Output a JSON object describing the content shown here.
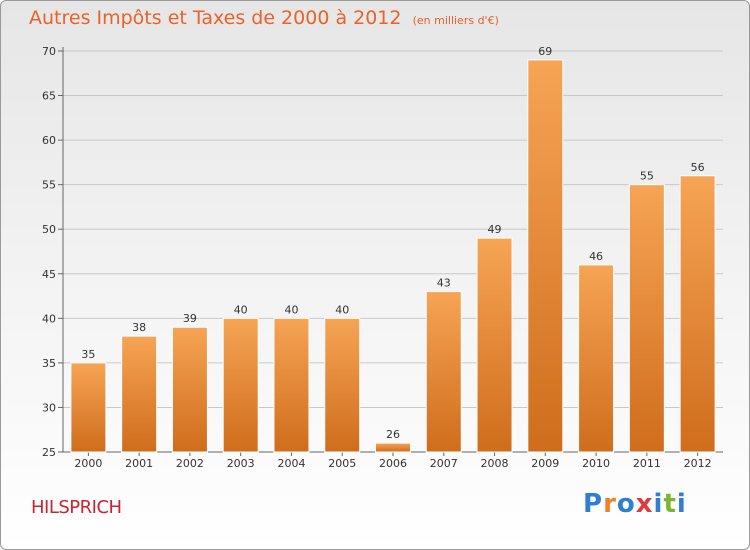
{
  "header": {
    "title": "Autres Impôts et Taxes de 2000 à 2012",
    "subtitle": "(en milliers d'€)"
  },
  "footer": {
    "commune": "HILSPRICH",
    "logo_text": "Proxiti"
  },
  "colors": {
    "bar_light": "#f6a455",
    "bar_dark": "#cf6d1c",
    "title": "#e8622a",
    "commune": "#c9242f",
    "logo": [
      "#2f7fd0",
      "#f0812b",
      "#2f7fd0",
      "#e03b3b",
      "#2f7fd0",
      "#7ab62f",
      "#2f7fd0"
    ]
  },
  "chart_data": {
    "type": "bar",
    "title": "Autres Impôts et Taxes de 2000 à 2012",
    "subtitle": "(en milliers d'€)",
    "xlabel": "",
    "ylabel": "",
    "categories": [
      "2000",
      "2001",
      "2002",
      "2003",
      "2004",
      "2005",
      "2006",
      "2007",
      "2008",
      "2009",
      "2010",
      "2011",
      "2012"
    ],
    "values": [
      35,
      38,
      39,
      40,
      40,
      40,
      26,
      43,
      49,
      69,
      46,
      55,
      56
    ],
    "ylim": [
      25,
      70
    ],
    "yticks": [
      25,
      30,
      35,
      40,
      45,
      50,
      55,
      60,
      65,
      70
    ],
    "grid": true,
    "legend": "none"
  }
}
